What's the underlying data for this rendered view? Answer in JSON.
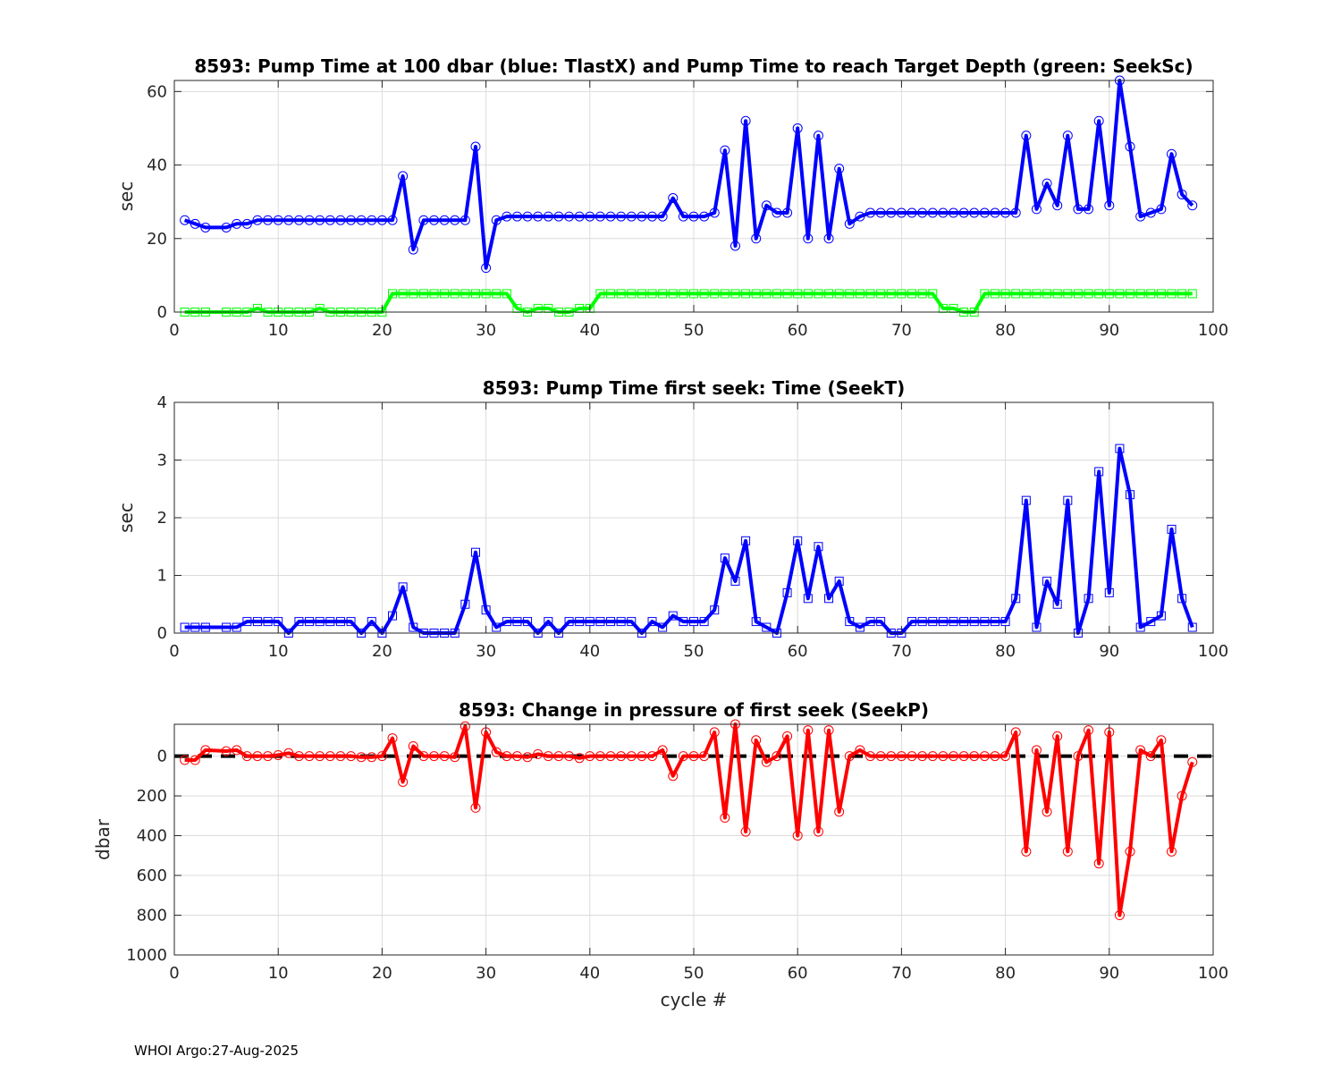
{
  "footer": "WHOI Argo:27-Aug-2025",
  "chart_data": [
    {
      "type": "line",
      "title": "8593:  Pump Time at 100 dbar (blue: TlastX) and Pump Time to reach Target Depth (green: SeekSc)",
      "xlabel": "",
      "ylabel": "sec",
      "xlim": [
        0,
        100
      ],
      "ylim": [
        0,
        63
      ],
      "xticks": [
        0,
        10,
        20,
        30,
        40,
        50,
        60,
        70,
        80,
        90,
        100
      ],
      "yticks": [
        0,
        20,
        40,
        60
      ],
      "y_reversed": false,
      "grid": true,
      "series": [
        {
          "name": "TlastX",
          "color": "#0000ff",
          "marker": "circle",
          "x": [
            1,
            2,
            3,
            5,
            6,
            7,
            8,
            9,
            10,
            11,
            12,
            13,
            14,
            15,
            16,
            17,
            18,
            19,
            20,
            21,
            22,
            23,
            24,
            25,
            26,
            27,
            28,
            29,
            30,
            31,
            32,
            33,
            34,
            35,
            36,
            37,
            38,
            39,
            40,
            41,
            42,
            43,
            44,
            45,
            46,
            47,
            48,
            49,
            50,
            51,
            52,
            53,
            54,
            55,
            56,
            57,
            58,
            59,
            60,
            61,
            62,
            63,
            64,
            65,
            66,
            67,
            68,
            69,
            70,
            71,
            72,
            73,
            74,
            75,
            76,
            77,
            78,
            79,
            80,
            81,
            82,
            83,
            84,
            85,
            86,
            87,
            88,
            89,
            90,
            91,
            92,
            93,
            94,
            95,
            96,
            97,
            98
          ],
          "y": [
            25,
            24,
            23,
            23,
            24,
            24,
            25,
            25,
            25,
            25,
            25,
            25,
            25,
            25,
            25,
            25,
            25,
            25,
            25,
            25,
            37,
            17,
            25,
            25,
            25,
            25,
            25,
            45,
            12,
            25,
            26,
            26,
            26,
            26,
            26,
            26,
            26,
            26,
            26,
            26,
            26,
            26,
            26,
            26,
            26,
            26,
            31,
            26,
            26,
            26,
            27,
            44,
            18,
            52,
            20,
            29,
            27,
            27,
            50,
            20,
            48,
            20,
            39,
            24,
            26,
            27,
            27,
            27,
            27,
            27,
            27,
            27,
            27,
            27,
            27,
            27,
            27,
            27,
            27,
            27,
            48,
            28,
            35,
            29,
            48,
            28,
            28,
            52,
            29,
            63,
            45,
            26,
            27,
            28,
            43,
            32,
            29
          ]
        },
        {
          "name": "SeekSc",
          "color": "#00ff00",
          "marker": "square",
          "x": [
            1,
            2,
            3,
            5,
            6,
            7,
            8,
            9,
            10,
            11,
            12,
            13,
            14,
            15,
            16,
            17,
            18,
            19,
            20,
            21,
            22,
            23,
            24,
            25,
            26,
            27,
            28,
            29,
            30,
            31,
            32,
            33,
            34,
            35,
            36,
            37,
            38,
            39,
            40,
            41,
            42,
            43,
            44,
            45,
            46,
            47,
            48,
            49,
            50,
            51,
            52,
            53,
            54,
            55,
            56,
            57,
            58,
            59,
            60,
            61,
            62,
            63,
            64,
            65,
            66,
            67,
            68,
            69,
            70,
            71,
            72,
            73,
            74,
            75,
            76,
            77,
            78,
            79,
            80,
            81,
            82,
            83,
            84,
            85,
            86,
            87,
            88,
            89,
            90,
            91,
            92,
            93,
            94,
            95,
            96,
            97,
            98
          ],
          "y": [
            0,
            0,
            0,
            0,
            0,
            0,
            1,
            0,
            0,
            0,
            0,
            0,
            1,
            0,
            0,
            0,
            0,
            0,
            0,
            5,
            5,
            5,
            5,
            5,
            5,
            5,
            5,
            5,
            5,
            5,
            5,
            1,
            0,
            1,
            1,
            0,
            0,
            1,
            1,
            5,
            5,
            5,
            5,
            5,
            5,
            5,
            5,
            5,
            5,
            5,
            5,
            5,
            5,
            5,
            5,
            5,
            5,
            5,
            5,
            5,
            5,
            5,
            5,
            5,
            5,
            5,
            5,
            5,
            5,
            5,
            5,
            5,
            1,
            1,
            0,
            0,
            5,
            5,
            5,
            5,
            5,
            5,
            5,
            5,
            5,
            5,
            5,
            5,
            5,
            5,
            5,
            5,
            5,
            5,
            5,
            5,
            5
          ]
        }
      ]
    },
    {
      "type": "line",
      "title": "8593: Pump Time first seek: Time (SeekT)",
      "xlabel": "",
      "ylabel": "sec",
      "xlim": [
        0,
        100
      ],
      "ylim": [
        0,
        4
      ],
      "xticks": [
        0,
        10,
        20,
        30,
        40,
        50,
        60,
        70,
        80,
        90,
        100
      ],
      "yticks": [
        0,
        1,
        2,
        3,
        4
      ],
      "y_reversed": false,
      "grid": true,
      "series": [
        {
          "name": "SeekT",
          "color": "#0000ff",
          "marker": "square",
          "x": [
            1,
            2,
            3,
            5,
            6,
            7,
            8,
            9,
            10,
            11,
            12,
            13,
            14,
            15,
            16,
            17,
            18,
            19,
            20,
            21,
            22,
            23,
            24,
            25,
            26,
            27,
            28,
            29,
            30,
            31,
            32,
            33,
            34,
            35,
            36,
            37,
            38,
            39,
            40,
            41,
            42,
            43,
            44,
            45,
            46,
            47,
            48,
            49,
            50,
            51,
            52,
            53,
            54,
            55,
            56,
            57,
            58,
            59,
            60,
            61,
            62,
            63,
            64,
            65,
            66,
            67,
            68,
            69,
            70,
            71,
            72,
            73,
            74,
            75,
            76,
            77,
            78,
            79,
            80,
            81,
            82,
            83,
            84,
            85,
            86,
            87,
            88,
            89,
            90,
            91,
            92,
            93,
            94,
            95,
            96,
            97,
            98
          ],
          "y": [
            0.1,
            0.1,
            0.1,
            0.1,
            0.1,
            0.2,
            0.2,
            0.2,
            0.2,
            0,
            0.2,
            0.2,
            0.2,
            0.2,
            0.2,
            0.2,
            0,
            0.2,
            0,
            0.3,
            0.8,
            0.1,
            0,
            0,
            0,
            0,
            0.5,
            1.4,
            0.4,
            0.1,
            0.2,
            0.2,
            0.2,
            0,
            0.2,
            0,
            0.2,
            0.2,
            0.2,
            0.2,
            0.2,
            0.2,
            0.2,
            0,
            0.2,
            0.1,
            0.3,
            0.2,
            0.2,
            0.2,
            0.4,
            1.3,
            0.9,
            1.6,
            0.2,
            0.1,
            0,
            0.7,
            1.6,
            0.6,
            1.5,
            0.6,
            0.9,
            0.2,
            0.1,
            0.2,
            0.2,
            0,
            0,
            0.2,
            0.2,
            0.2,
            0.2,
            0.2,
            0.2,
            0.2,
            0.2,
            0.2,
            0.2,
            0.6,
            2.3,
            0.1,
            0.9,
            0.5,
            2.3,
            0,
            0.6,
            2.8,
            0.7,
            3.2,
            2.4,
            0.1,
            0.2,
            0.3,
            1.8,
            0.6,
            0.1
          ]
        }
      ]
    },
    {
      "type": "line",
      "title": "8593: Change in pressure of first seek (SeekP)",
      "xlabel": "cycle #",
      "ylabel": "dbar",
      "xlim": [
        0,
        100
      ],
      "ylim": [
        1000,
        -160
      ],
      "xticks": [
        0,
        10,
        20,
        30,
        40,
        50,
        60,
        70,
        80,
        90,
        100
      ],
      "yticks": [
        0,
        200,
        400,
        600,
        800,
        1000
      ],
      "y_reversed": true,
      "grid": true,
      "reference_line": {
        "y": 0,
        "style": "dashed",
        "color": "#000000"
      },
      "series": [
        {
          "name": "SeekP",
          "color": "#ff0000",
          "marker": "circle",
          "x": [
            1,
            2,
            3,
            5,
            6,
            7,
            8,
            9,
            10,
            11,
            12,
            13,
            14,
            15,
            16,
            17,
            18,
            19,
            20,
            21,
            22,
            23,
            24,
            25,
            26,
            27,
            28,
            29,
            30,
            31,
            32,
            33,
            34,
            35,
            36,
            37,
            38,
            39,
            40,
            41,
            42,
            43,
            44,
            45,
            46,
            47,
            48,
            49,
            50,
            51,
            52,
            53,
            54,
            55,
            56,
            57,
            58,
            59,
            60,
            61,
            62,
            63,
            64,
            65,
            66,
            67,
            68,
            69,
            70,
            71,
            72,
            73,
            74,
            75,
            76,
            77,
            78,
            79,
            80,
            81,
            82,
            83,
            84,
            85,
            86,
            87,
            88,
            89,
            90,
            91,
            92,
            93,
            94,
            95,
            96,
            97,
            98
          ],
          "y": [
            20,
            20,
            -30,
            -25,
            -30,
            0,
            0,
            0,
            -5,
            -15,
            0,
            0,
            0,
            0,
            0,
            0,
            5,
            5,
            0,
            -90,
            130,
            -50,
            0,
            0,
            0,
            5,
            -150,
            260,
            -120,
            -20,
            0,
            0,
            5,
            -10,
            0,
            0,
            0,
            10,
            0,
            0,
            0,
            0,
            0,
            0,
            0,
            -30,
            100,
            0,
            0,
            0,
            -120,
            310,
            -160,
            380,
            -80,
            30,
            0,
            -100,
            400,
            -130,
            380,
            -130,
            280,
            0,
            -30,
            0,
            0,
            0,
            0,
            0,
            0,
            0,
            0,
            0,
            0,
            0,
            0,
            0,
            0,
            -120,
            480,
            -30,
            280,
            -100,
            480,
            0,
            -130,
            540,
            -120,
            800,
            480,
            -30,
            0,
            -80,
            480,
            200,
            30
          ]
        }
      ]
    }
  ]
}
